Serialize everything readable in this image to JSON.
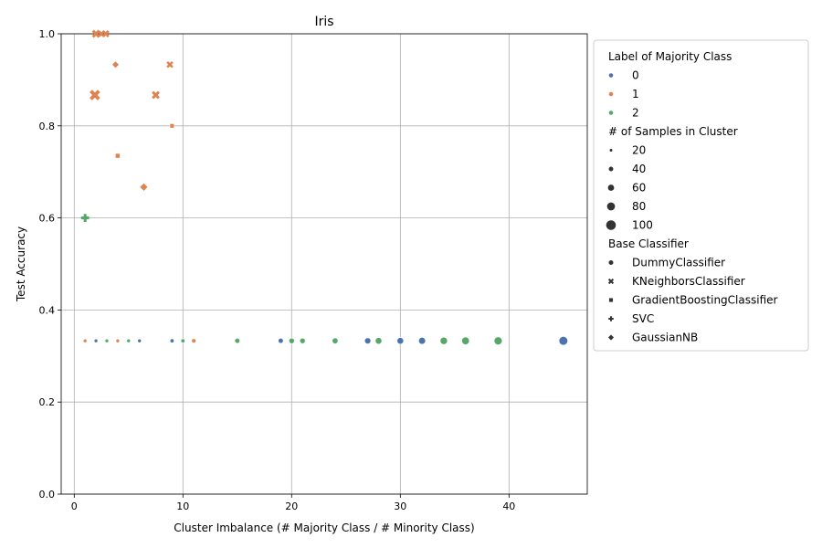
{
  "chart_data": {
    "type": "scatter",
    "title": "Iris",
    "xlabel": "Cluster Imbalance (# Majority Class / # Minority Class)",
    "ylabel": "Test Accuracy",
    "xlim": [
      -1.2,
      47.2
    ],
    "ylim": [
      0.0,
      1.0
    ],
    "xticks": [
      0,
      10,
      20,
      30,
      40
    ],
    "yticks": [
      0.0,
      0.2,
      0.4,
      0.6,
      0.8,
      1.0
    ],
    "xtick_labels": [
      "0",
      "10",
      "20",
      "30",
      "40"
    ],
    "ytick_labels": [
      "0.0",
      "0.2",
      "0.4",
      "0.6",
      "0.8",
      "1.0"
    ],
    "grid": true,
    "legend_placement": "outside right, top",
    "hue": {
      "title": "Label of Majority Class",
      "levels": [
        {
          "label": "0",
          "value": 0,
          "color": "#4c72b0"
        },
        {
          "label": "1",
          "value": 1,
          "color": "#dd8452"
        },
        {
          "label": "2",
          "value": 2,
          "color": "#55a868"
        }
      ]
    },
    "size": {
      "title": "# of Samples in Cluster",
      "levels": [
        {
          "label": "20",
          "value": 20
        },
        {
          "label": "40",
          "value": 40
        },
        {
          "label": "60",
          "value": 60
        },
        {
          "label": "80",
          "value": 80
        },
        {
          "label": "100",
          "value": 100
        }
      ]
    },
    "style": {
      "title": "Base Classifier",
      "levels": [
        {
          "label": "DummyClassifier",
          "marker": "circle"
        },
        {
          "label": "KNeighborsClassifier",
          "marker": "x"
        },
        {
          "label": "GradientBoostingClassifier",
          "marker": "square"
        },
        {
          "label": "SVC",
          "marker": "plus"
        },
        {
          "label": "GaussianNB",
          "marker": "diamond"
        }
      ]
    },
    "points": [
      {
        "x": 1,
        "y": 0.333,
        "label": 1,
        "samples": 20,
        "classifier": "DummyClassifier"
      },
      {
        "x": 2,
        "y": 0.333,
        "label": 0,
        "samples": 20,
        "classifier": "DummyClassifier"
      },
      {
        "x": 3,
        "y": 0.333,
        "label": 2,
        "samples": 20,
        "classifier": "DummyClassifier"
      },
      {
        "x": 4,
        "y": 0.333,
        "label": 1,
        "samples": 20,
        "classifier": "DummyClassifier"
      },
      {
        "x": 5,
        "y": 0.333,
        "label": 2,
        "samples": 20,
        "classifier": "DummyClassifier"
      },
      {
        "x": 6,
        "y": 0.333,
        "label": 0,
        "samples": 20,
        "classifier": "DummyClassifier"
      },
      {
        "x": 9,
        "y": 0.333,
        "label": 0,
        "samples": 25,
        "classifier": "DummyClassifier"
      },
      {
        "x": 10,
        "y": 0.333,
        "label": 2,
        "samples": 25,
        "classifier": "DummyClassifier"
      },
      {
        "x": 11,
        "y": 0.333,
        "label": 1,
        "samples": 30,
        "classifier": "DummyClassifier"
      },
      {
        "x": 15,
        "y": 0.333,
        "label": 2,
        "samples": 40,
        "classifier": "DummyClassifier"
      },
      {
        "x": 19,
        "y": 0.333,
        "label": 0,
        "samples": 40,
        "classifier": "DummyClassifier"
      },
      {
        "x": 20,
        "y": 0.333,
        "label": 2,
        "samples": 45,
        "classifier": "DummyClassifier"
      },
      {
        "x": 21,
        "y": 0.333,
        "label": 2,
        "samples": 45,
        "classifier": "DummyClassifier"
      },
      {
        "x": 24,
        "y": 0.333,
        "label": 2,
        "samples": 50,
        "classifier": "DummyClassifier"
      },
      {
        "x": 27,
        "y": 0.333,
        "label": 0,
        "samples": 55,
        "classifier": "DummyClassifier"
      },
      {
        "x": 28,
        "y": 0.333,
        "label": 2,
        "samples": 60,
        "classifier": "DummyClassifier"
      },
      {
        "x": 30,
        "y": 0.333,
        "label": 0,
        "samples": 60,
        "classifier": "DummyClassifier"
      },
      {
        "x": 32,
        "y": 0.333,
        "label": 0,
        "samples": 65,
        "classifier": "DummyClassifier"
      },
      {
        "x": 34,
        "y": 0.333,
        "label": 2,
        "samples": 70,
        "classifier": "DummyClassifier"
      },
      {
        "x": 36,
        "y": 0.333,
        "label": 2,
        "samples": 75,
        "classifier": "DummyClassifier"
      },
      {
        "x": 39,
        "y": 0.333,
        "label": 2,
        "samples": 80,
        "classifier": "DummyClassifier"
      },
      {
        "x": 45,
        "y": 0.333,
        "label": 0,
        "samples": 90,
        "classifier": "DummyClassifier"
      },
      {
        "x": 2.0,
        "y": 1.0,
        "label": 1,
        "samples": 70,
        "classifier": "KNeighborsClassifier"
      },
      {
        "x": 2.5,
        "y": 1.0,
        "label": 1,
        "samples": 55,
        "classifier": "KNeighborsClassifier"
      },
      {
        "x": 2.9,
        "y": 1.0,
        "label": 1,
        "samples": 60,
        "classifier": "KNeighborsClassifier"
      },
      {
        "x": 1.9,
        "y": 0.867,
        "label": 1,
        "samples": 100,
        "classifier": "KNeighborsClassifier"
      },
      {
        "x": 7.5,
        "y": 0.867,
        "label": 1,
        "samples": 70,
        "classifier": "KNeighborsClassifier"
      },
      {
        "x": 8.8,
        "y": 0.933,
        "label": 1,
        "samples": 55,
        "classifier": "KNeighborsClassifier"
      },
      {
        "x": 4.0,
        "y": 0.735,
        "label": 1,
        "samples": 45,
        "classifier": "GradientBoostingClassifier"
      },
      {
        "x": 9.0,
        "y": 0.8,
        "label": 1,
        "samples": 40,
        "classifier": "GradientBoostingClassifier"
      },
      {
        "x": 1.0,
        "y": 0.6,
        "label": 2,
        "samples": 80,
        "classifier": "SVC"
      },
      {
        "x": 3.8,
        "y": 0.933,
        "label": 1,
        "samples": 50,
        "classifier": "GaussianNB"
      },
      {
        "x": 6.4,
        "y": 0.667,
        "label": 1,
        "samples": 60,
        "classifier": "GaussianNB"
      }
    ]
  }
}
